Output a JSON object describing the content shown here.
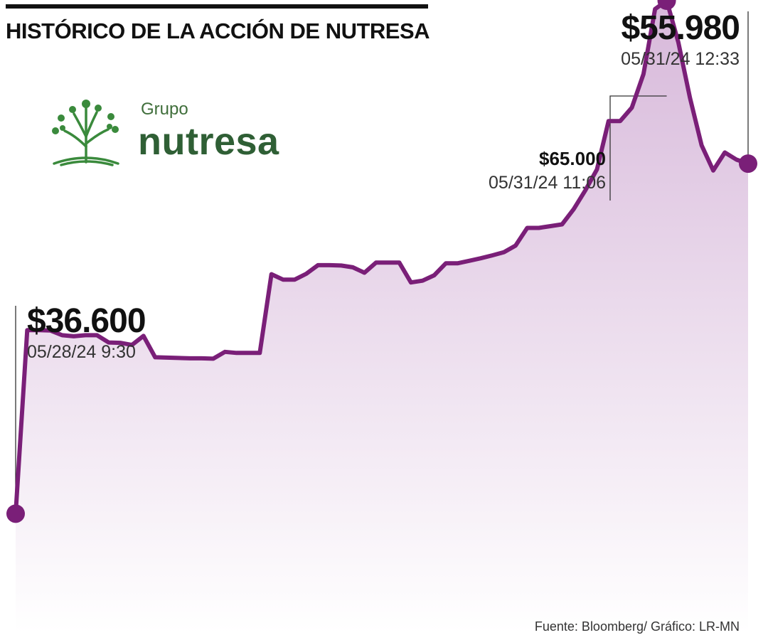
{
  "header": {
    "title": "HISTÓRICO DE LA ACCIÓN DE NUTRESA"
  },
  "logo": {
    "line1": "Grupo",
    "line2": "nutresa",
    "icon": "tree-icon",
    "color": "#3a8a3c"
  },
  "annotations": {
    "start": {
      "price": "$36.600",
      "date": "05/28/24 9:30"
    },
    "max": {
      "price": "$65.000",
      "date": "05/31/24 11:06"
    },
    "last": {
      "price": "$55.980",
      "date": "05/31/24 12:33"
    }
  },
  "footer": {
    "source": "Fuente: Bloomberg/ Gráfico: LR-MN"
  },
  "colors": {
    "line": "#7a1f78",
    "fill_top": "#d7b8da",
    "fill_bottom": "#ffffff",
    "leader": "#333333"
  },
  "chart_data": {
    "type": "area",
    "xlabel": "",
    "ylabel": "",
    "ylim": [
      30000,
      70000
    ],
    "grid": false,
    "legend": "none",
    "series": [
      {
        "values": [
          36600,
          46760,
          46760,
          46740,
          46480,
          46420,
          46480,
          46480,
          46080,
          46060,
          45940,
          46440,
          45260,
          45240,
          45220,
          45200,
          45200,
          45180,
          45560,
          45500,
          45500,
          45500,
          49860,
          49560,
          49560,
          49880,
          50360,
          50360,
          50340,
          50240,
          49940,
          50500,
          50500,
          50500,
          49400,
          49500,
          49800,
          50460,
          50460,
          50600,
          50740,
          50900,
          51080,
          51440,
          52420,
          52420,
          52520,
          52620,
          53460,
          54500,
          55660,
          58340,
          58340,
          59080,
          60940,
          64540,
          65000,
          62700,
          59620,
          57000,
          55600,
          56600,
          56200,
          55980
        ]
      }
    ],
    "highlights": [
      {
        "label": "start",
        "index": 0,
        "value": 36600
      },
      {
        "label": "max",
        "index": 56,
        "value": 65000
      },
      {
        "label": "last",
        "index": 63,
        "value": 55980
      }
    ]
  }
}
